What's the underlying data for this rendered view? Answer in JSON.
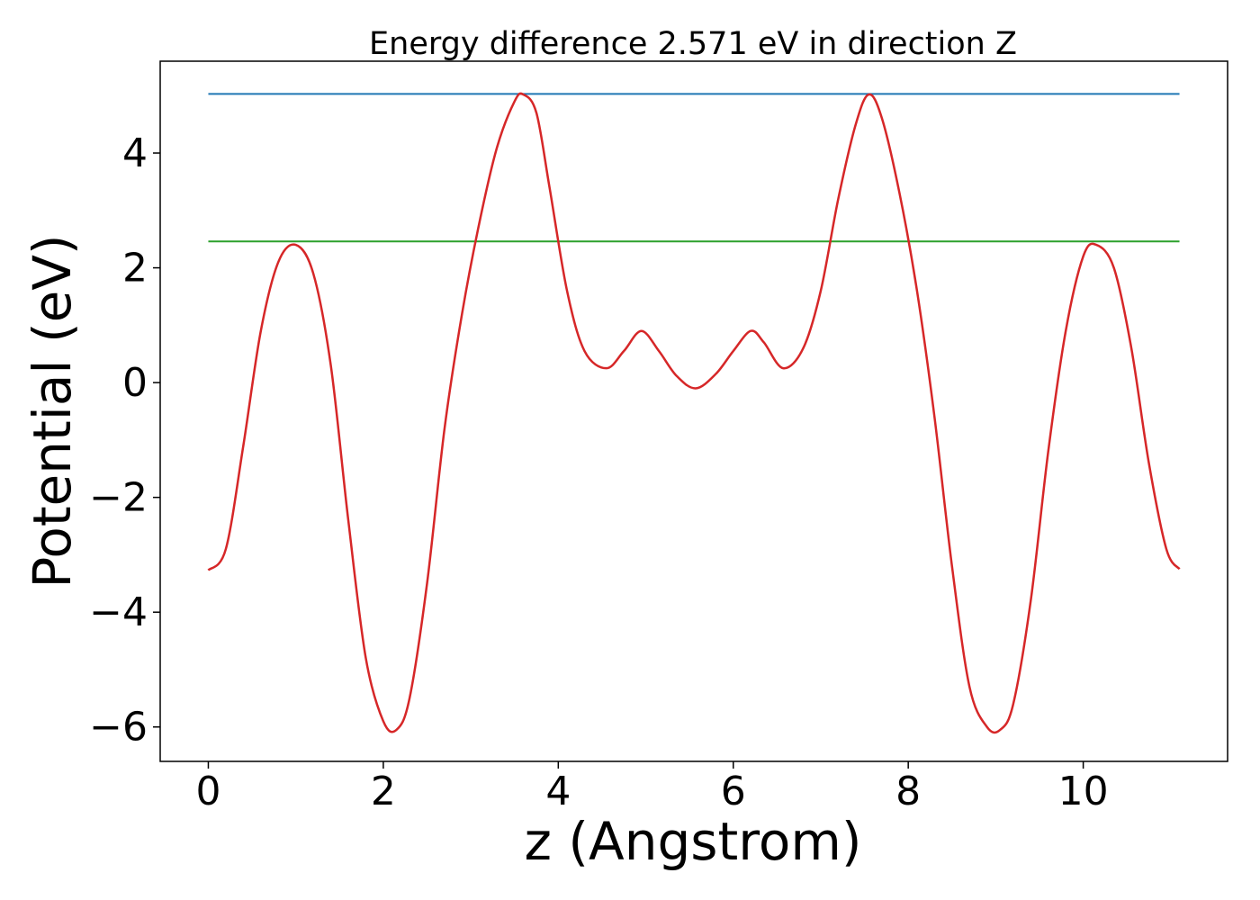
{
  "chart_data": {
    "type": "line",
    "title": "Energy difference 2.571 eV in direction Z",
    "xlabel": "z (Angstrom)",
    "ylabel": "Potential (eV)",
    "xlim": [
      -0.55,
      11.65
    ],
    "ylim": [
      -6.6,
      5.6
    ],
    "x_ticks": [
      0,
      2,
      4,
      6,
      8,
      10
    ],
    "x_tick_labels": [
      "0",
      "2",
      "4",
      "6",
      "8",
      "10"
    ],
    "y_ticks": [
      -6,
      -4,
      -2,
      0,
      2,
      4
    ],
    "y_tick_labels": [
      "−6",
      "−4",
      "−2",
      "0",
      "2",
      "4"
    ],
    "grid": false,
    "series": [
      {
        "color": "#1f77b4",
        "x": [
          0,
          11.1
        ],
        "y": [
          5.03,
          5.03
        ]
      },
      {
        "color": "#2ca02c",
        "x": [
          0,
          11.1
        ],
        "y": [
          2.46,
          2.46
        ]
      },
      {
        "color": "#d62728",
        "x": [
          0,
          0.2,
          0.4,
          0.6,
          0.8,
          1.0,
          1.2,
          1.4,
          1.6,
          1.8,
          2.0,
          2.15,
          2.3,
          2.5,
          2.7,
          2.9,
          3.1,
          3.3,
          3.5,
          3.6,
          3.75,
          3.9,
          4.1,
          4.3,
          4.55,
          4.75,
          4.95,
          5.15,
          5.35,
          5.57,
          5.8,
          6.0,
          6.2,
          6.35,
          6.57,
          6.8,
          7.0,
          7.2,
          7.4,
          7.55,
          7.7,
          7.9,
          8.1,
          8.3,
          8.5,
          8.7,
          8.9,
          9.05,
          9.2,
          9.4,
          9.6,
          9.8,
          10.0,
          10.15,
          10.35,
          10.55,
          10.75,
          10.95,
          11.1
        ],
        "y": [
          -3.27,
          -2.9,
          -1.1,
          0.9,
          2.1,
          2.4,
          1.9,
          0.3,
          -2.4,
          -4.8,
          -5.9,
          -6.05,
          -5.5,
          -3.5,
          -0.8,
          1.2,
          2.8,
          4.1,
          4.9,
          5.02,
          4.7,
          3.4,
          1.6,
          0.55,
          0.25,
          0.55,
          0.9,
          0.55,
          0.12,
          -0.1,
          0.15,
          0.55,
          0.9,
          0.7,
          0.25,
          0.6,
          1.6,
          3.2,
          4.5,
          5.02,
          4.6,
          3.3,
          1.6,
          -0.6,
          -3.2,
          -5.3,
          -6.0,
          -6.05,
          -5.6,
          -3.8,
          -1.2,
          0.9,
          2.2,
          2.4,
          2.0,
          0.6,
          -1.4,
          -2.9,
          -3.25
        ]
      }
    ]
  }
}
